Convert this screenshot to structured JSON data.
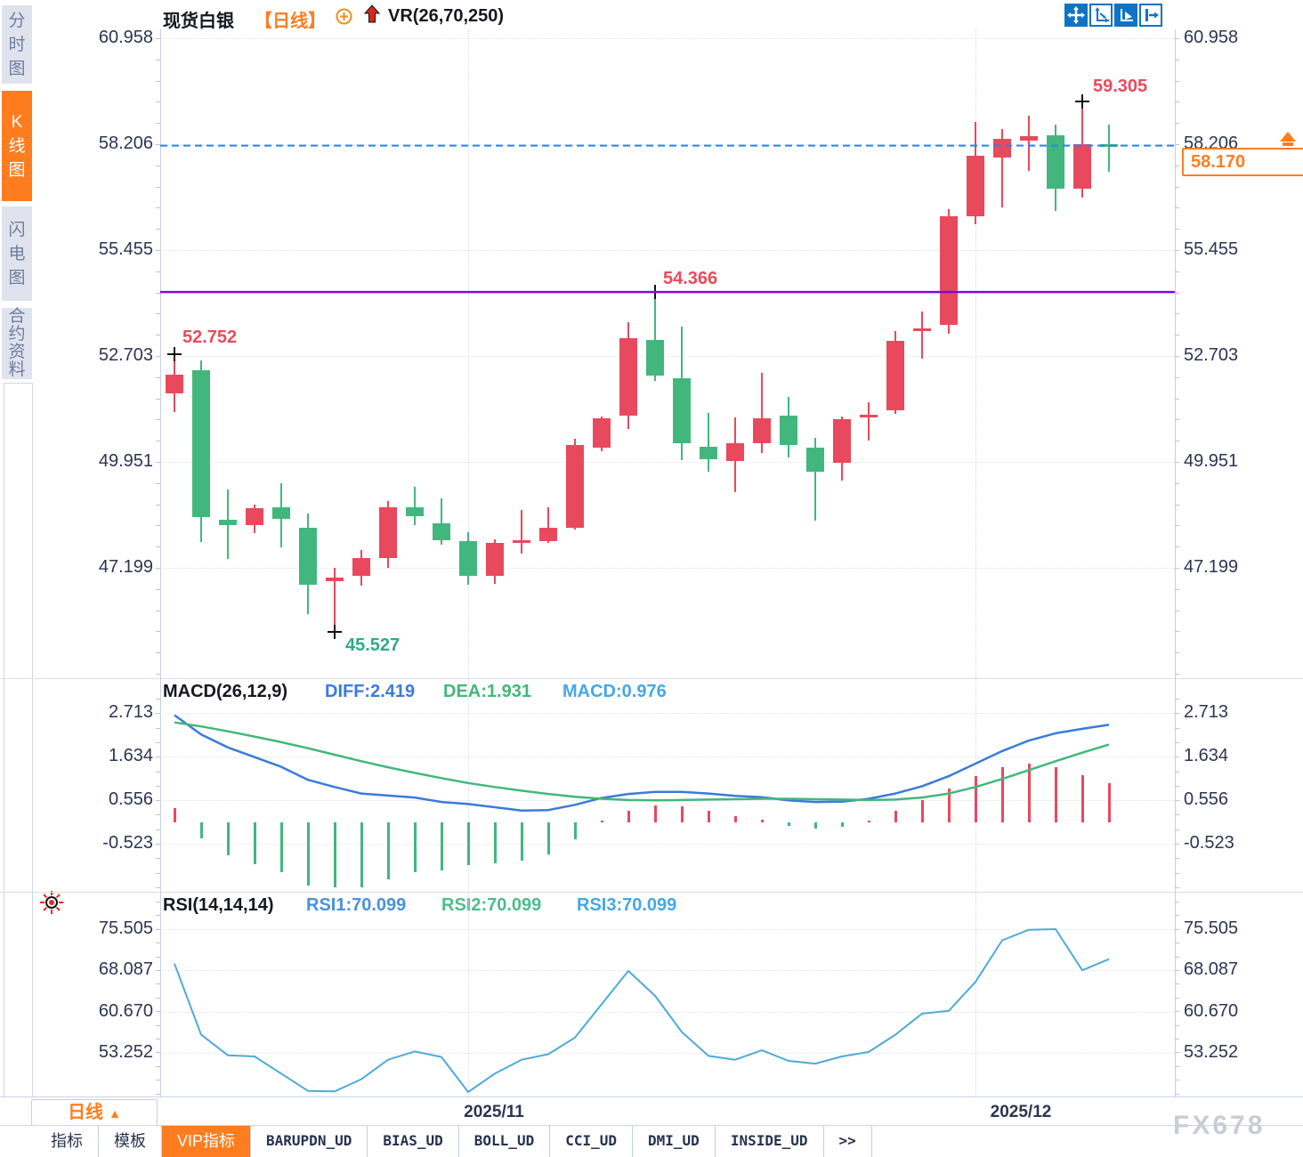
{
  "sidebar": {
    "items": [
      {
        "label": "分时图",
        "active": false
      },
      {
        "label": "K线图",
        "active": true
      },
      {
        "label": "闪电图",
        "active": false
      },
      {
        "label": "合约资料",
        "active": false
      }
    ]
  },
  "header": {
    "symbol": "现货白银",
    "period_tag": "【日线】",
    "indicator": "VR(26,70,250)",
    "icons": [
      "pan-icon",
      "axis-range-icon",
      "auto-scale-icon",
      "jump-latest-icon"
    ]
  },
  "main_panel": {
    "y_axis": [
      "60.958",
      "58.206",
      "55.455",
      "52.703",
      "49.951",
      "47.199"
    ],
    "price_tag": "58.170"
  },
  "macd_panel": {
    "title": "MACD(26,12,9)",
    "diff_label": "DIFF:2.419",
    "dea_label": "DEA:1.931",
    "macd_label": "MACD:0.976",
    "y_axis": [
      "2.713",
      "1.634",
      "0.556",
      "-0.523"
    ]
  },
  "rsi_panel": {
    "title": "RSI(14,14,14)",
    "rsi1_label": "RSI1:70.099",
    "rsi2_label": "RSI2:70.099",
    "rsi3_label": "RSI3:70.099",
    "y_axis": [
      "75.505",
      "68.087",
      "60.670",
      "53.252"
    ]
  },
  "x_axis": {
    "period_button": "日线",
    "dropdown_glyph": "▲",
    "labels": [
      "2025/11",
      "2025/12"
    ]
  },
  "bottom_tabs": [
    {
      "label": "指标",
      "active": false,
      "mono": false
    },
    {
      "label": "模板",
      "active": false,
      "mono": false
    },
    {
      "label": "VIP指标",
      "active": true,
      "mono": false
    },
    {
      "label": "BARUPDN_UD",
      "active": false,
      "mono": true
    },
    {
      "label": "BIAS_UD",
      "active": false,
      "mono": true
    },
    {
      "label": "BOLL_UD",
      "active": false,
      "mono": true
    },
    {
      "label": "CCI_UD",
      "active": false,
      "mono": true
    },
    {
      "label": "DMI_UD",
      "active": false,
      "mono": true
    },
    {
      "label": "INSIDE_UD",
      "active": false,
      "mono": true
    },
    {
      "label": ">>",
      "active": false,
      "mono": true
    }
  ],
  "watermark": "FX678",
  "colors": {
    "up": "#e8495c",
    "down": "#41b77d",
    "accent_orange": "#ff7d1e",
    "diff_blue": "#3a7bdb",
    "dea_green": "#43b77a",
    "macd_lightblue": "#45a7e3",
    "rsi_line": "#4faad8",
    "dashed_price_line": "#2287ec",
    "support_line_purple": "#7c08e8",
    "annotation_red": "#ea4b5c",
    "annotation_green": "#2faa8a",
    "icon_blue": "#1173c4"
  },
  "chart_data": {
    "type": "candlestick",
    "title": "现货白银 日线",
    "y_axis_main": [
      60.958,
      58.206,
      55.455,
      52.703,
      49.951,
      47.199
    ],
    "y_axis_macd": [
      2.713,
      1.634,
      0.556,
      -0.523
    ],
    "y_axis_rsi": [
      75.505,
      68.087,
      60.67,
      53.252
    ],
    "x_gridline_indices": [
      11,
      30
    ],
    "x_label_centers": [
      555,
      1147
    ],
    "candles_ohlc": [
      [
        51.74,
        52.752,
        51.25,
        52.22
      ],
      [
        52.34,
        52.59,
        47.86,
        48.52
      ],
      [
        48.44,
        49.23,
        47.42,
        48.3
      ],
      [
        48.3,
        48.85,
        48.1,
        48.75
      ],
      [
        48.77,
        49.39,
        47.73,
        48.47
      ],
      [
        48.24,
        48.61,
        46.0,
        46.76
      ],
      [
        46.85,
        47.2,
        45.527,
        46.95
      ],
      [
        46.99,
        47.66,
        46.73,
        47.45
      ],
      [
        47.45,
        48.93,
        47.2,
        48.77
      ],
      [
        48.77,
        49.3,
        48.31,
        48.54
      ],
      [
        48.36,
        49.0,
        47.8,
        47.92
      ],
      [
        47.89,
        48.12,
        46.76,
        46.99
      ],
      [
        46.99,
        47.95,
        46.78,
        47.85
      ],
      [
        47.88,
        48.7,
        47.58,
        47.92
      ],
      [
        47.9,
        48.77,
        47.85,
        48.24
      ],
      [
        48.24,
        50.55,
        48.19,
        50.39
      ],
      [
        50.32,
        51.13,
        50.23,
        51.08
      ],
      [
        51.15,
        53.58,
        50.81,
        53.17
      ],
      [
        53.12,
        54.366,
        52.05,
        52.19
      ],
      [
        52.12,
        53.47,
        50.0,
        50.43
      ],
      [
        50.35,
        51.22,
        49.7,
        50.02
      ],
      [
        49.97,
        51.1,
        49.17,
        50.43
      ],
      [
        50.43,
        52.26,
        50.18,
        51.09
      ],
      [
        51.16,
        51.63,
        50.06,
        50.4
      ],
      [
        50.32,
        50.58,
        48.43,
        49.7
      ],
      [
        49.93,
        51.12,
        49.46,
        51.07
      ],
      [
        51.12,
        51.51,
        50.51,
        51.17
      ],
      [
        51.29,
        53.35,
        51.2,
        53.1
      ],
      [
        53.38,
        53.86,
        52.63,
        53.42
      ],
      [
        53.51,
        56.52,
        53.28,
        56.33
      ],
      [
        56.33,
        58.78,
        56.12,
        57.91
      ],
      [
        57.86,
        58.6,
        56.56,
        58.35
      ],
      [
        58.3,
        58.95,
        57.52,
        58.42
      ],
      [
        58.44,
        58.72,
        56.47,
        57.06
      ],
      [
        57.06,
        59.305,
        56.83,
        58.21
      ],
      [
        58.21,
        58.72,
        57.49,
        58.14
      ]
    ],
    "macd": {
      "diff": [
        2.66,
        2.18,
        1.86,
        1.62,
        1.38,
        1.06,
        0.88,
        0.72,
        0.67,
        0.62,
        0.51,
        0.46,
        0.38,
        0.3,
        0.31,
        0.44,
        0.61,
        0.71,
        0.76,
        0.76,
        0.72,
        0.66,
        0.63,
        0.55,
        0.51,
        0.52,
        0.59,
        0.72,
        0.9,
        1.15,
        1.46,
        1.77,
        2.03,
        2.21,
        2.32,
        2.419
      ],
      "dea": [
        2.48,
        2.38,
        2.26,
        2.13,
        1.99,
        1.84,
        1.68,
        1.52,
        1.37,
        1.23,
        1.1,
        0.98,
        0.88,
        0.79,
        0.71,
        0.64,
        0.59,
        0.56,
        0.55,
        0.56,
        0.57,
        0.58,
        0.59,
        0.59,
        0.58,
        0.57,
        0.56,
        0.57,
        0.62,
        0.72,
        0.88,
        1.08,
        1.3,
        1.52,
        1.73,
        1.931
      ],
      "hist": [
        0.36,
        -0.4,
        -0.8,
        -1.03,
        -1.23,
        -1.56,
        -1.6,
        -1.6,
        -1.4,
        -1.23,
        -1.18,
        -1.05,
        -1.0,
        -0.94,
        -0.78,
        -0.41,
        0.04,
        0.3,
        0.42,
        0.4,
        0.3,
        0.16,
        0.08,
        -0.08,
        -0.14,
        -0.1,
        0.06,
        0.3,
        0.55,
        0.85,
        1.15,
        1.38,
        1.45,
        1.38,
        1.18,
        0.976
      ]
    },
    "rsi": [
      69.3,
      56.5,
      52.8,
      52.6,
      49.5,
      46.4,
      46.3,
      48.5,
      52.0,
      53.5,
      52.5,
      46.2,
      49.5,
      52.0,
      53.0,
      56.0,
      62.0,
      68.0,
      63.5,
      57.0,
      52.7,
      52.0,
      53.7,
      51.8,
      51.3,
      52.6,
      53.4,
      56.5,
      60.3,
      60.8,
      66.0,
      73.5,
      75.4,
      75.5,
      68.1,
      70.1
    ],
    "annotations": [
      {
        "text": "52.752",
        "index": 0,
        "at": "high",
        "color": "#ea4b5c"
      },
      {
        "text": "45.527",
        "index": 6,
        "at": "low",
        "color": "#2faa8a"
      },
      {
        "text": "54.366",
        "index": 18,
        "at": "high",
        "color": "#ea4b5c"
      },
      {
        "text": "59.305",
        "index": 34,
        "at": "high",
        "color": "#ea4b5c"
      }
    ],
    "current_price": 58.17,
    "support_line_level": 54.366,
    "legend": "red = up candle, green = down candle"
  }
}
